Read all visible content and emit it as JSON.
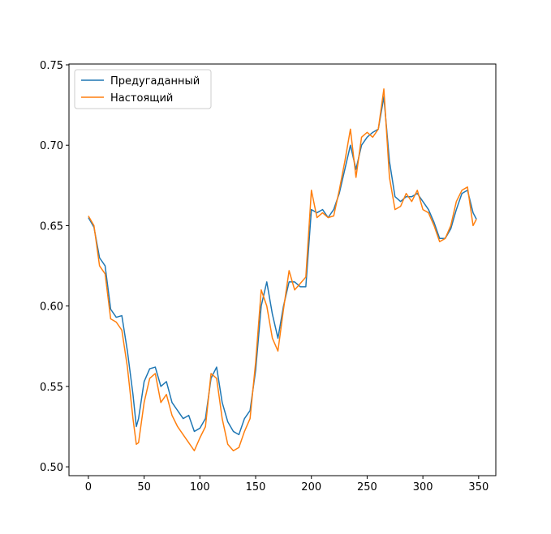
{
  "chart_data": {
    "type": "line",
    "x": [
      0,
      5,
      10,
      15,
      20,
      25,
      30,
      35,
      40,
      43,
      45,
      50,
      55,
      60,
      65,
      70,
      75,
      80,
      85,
      90,
      95,
      100,
      105,
      110,
      115,
      120,
      125,
      130,
      135,
      140,
      145,
      150,
      155,
      160,
      165,
      170,
      175,
      180,
      185,
      190,
      195,
      200,
      205,
      210,
      215,
      220,
      225,
      230,
      235,
      240,
      245,
      250,
      255,
      260,
      265,
      270,
      275,
      280,
      285,
      290,
      295,
      300,
      305,
      310,
      315,
      320,
      325,
      330,
      335,
      340,
      345,
      348
    ],
    "series": [
      {
        "name": "Предугаданный",
        "color": "#1f77b4",
        "values": [
          0.655,
          0.649,
          0.63,
          0.625,
          0.598,
          0.593,
          0.594,
          0.572,
          0.545,
          0.525,
          0.53,
          0.553,
          0.561,
          0.562,
          0.55,
          0.553,
          0.54,
          0.535,
          0.53,
          0.532,
          0.522,
          0.524,
          0.53,
          0.555,
          0.562,
          0.54,
          0.528,
          0.522,
          0.52,
          0.53,
          0.535,
          0.56,
          0.6,
          0.615,
          0.595,
          0.58,
          0.6,
          0.615,
          0.615,
          0.612,
          0.612,
          0.66,
          0.658,
          0.66,
          0.655,
          0.66,
          0.67,
          0.685,
          0.7,
          0.685,
          0.7,
          0.705,
          0.708,
          0.71,
          0.73,
          0.69,
          0.668,
          0.665,
          0.668,
          0.668,
          0.67,
          0.665,
          0.66,
          0.652,
          0.642,
          0.642,
          0.648,
          0.66,
          0.67,
          0.672,
          0.658,
          0.654
        ]
      },
      {
        "name": "Настоящий",
        "color": "#ff7f0e",
        "values": [
          0.656,
          0.65,
          0.625,
          0.62,
          0.592,
          0.59,
          0.585,
          0.562,
          0.53,
          0.514,
          0.515,
          0.54,
          0.555,
          0.558,
          0.54,
          0.545,
          0.532,
          0.525,
          0.52,
          0.515,
          0.51,
          0.518,
          0.525,
          0.558,
          0.555,
          0.53,
          0.514,
          0.51,
          0.512,
          0.522,
          0.53,
          0.565,
          0.61,
          0.6,
          0.58,
          0.572,
          0.598,
          0.622,
          0.61,
          0.614,
          0.618,
          0.672,
          0.655,
          0.658,
          0.655,
          0.656,
          0.672,
          0.69,
          0.71,
          0.68,
          0.705,
          0.708,
          0.705,
          0.71,
          0.735,
          0.68,
          0.66,
          0.662,
          0.67,
          0.665,
          0.672,
          0.66,
          0.658,
          0.65,
          0.64,
          0.642,
          0.65,
          0.665,
          0.672,
          0.674,
          0.65,
          0.654
        ]
      }
    ],
    "xlim": [
      -17.4,
      365.4
    ],
    "ylim": [
      0.4945,
      0.7505
    ],
    "xticks": [
      0,
      50,
      100,
      150,
      200,
      250,
      300,
      350
    ],
    "yticks": [
      {
        "value": 0.5,
        "label": "0.50"
      },
      {
        "value": 0.55,
        "label": "0.55"
      },
      {
        "value": 0.6,
        "label": "0.60"
      },
      {
        "value": 0.65,
        "label": "0.65"
      },
      {
        "value": 0.7,
        "label": "0.70"
      },
      {
        "value": 0.75,
        "label": "0.75"
      }
    ],
    "legend": "upper left",
    "grid": false
  }
}
